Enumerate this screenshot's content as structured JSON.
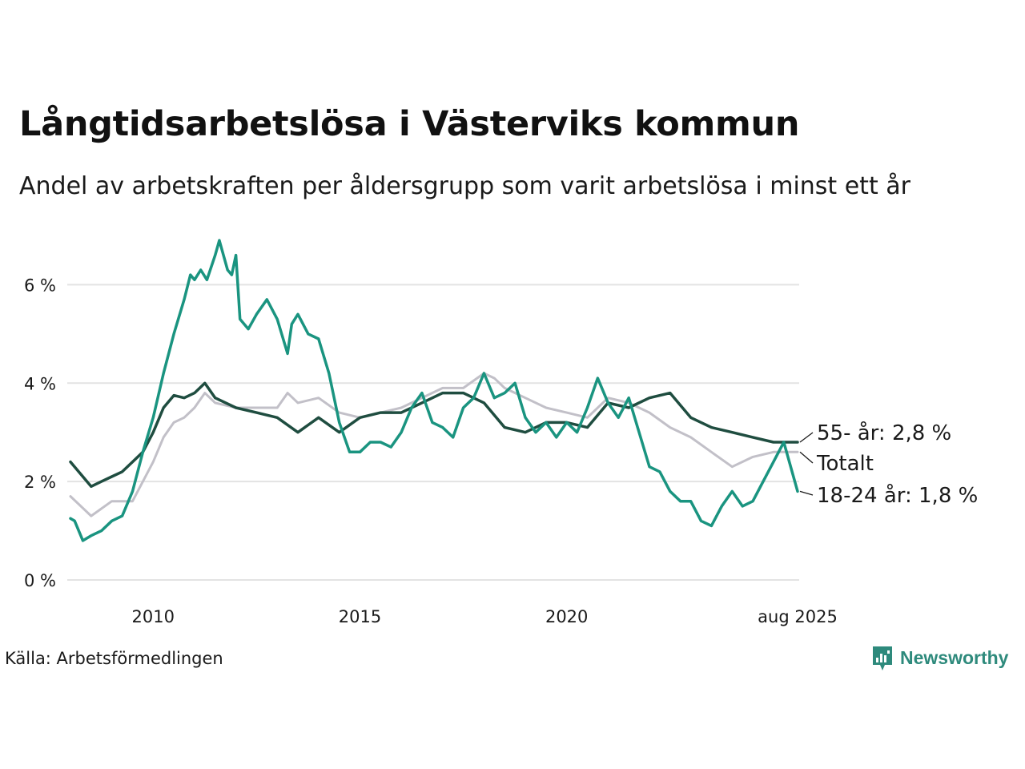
{
  "title": "Långtidsarbetslösa i Västerviks kommun",
  "subtitle": "Andel av arbetskraften per åldersgrupp som varit arbetslösa i minst ett år",
  "source": "Källa: Arbetsförmedlingen",
  "brand": "Newsworthy",
  "colors": {
    "youth": "#1a9480",
    "older": "#1f4d40",
    "total": "#c2c0c8",
    "grid": "#e3e3e3",
    "brand": "#2e8a7c"
  },
  "chart_data": {
    "type": "line",
    "ylim": [
      0,
      7
    ],
    "xlim": [
      2008.0,
      2025.583
    ],
    "yticks": [
      0,
      2,
      4,
      6
    ],
    "ytick_labels": [
      "0 %",
      "2 %",
      "4 %",
      "6 %"
    ],
    "xticks": [
      2010,
      2015,
      2020,
      2025.583
    ],
    "xtick_labels": [
      "2010",
      "2015",
      "2020",
      "aug 2025"
    ],
    "series": [
      {
        "key": "total",
        "label": "Totalt",
        "x": [
          2008.0,
          2008.5,
          2009.0,
          2009.5,
          2010.0,
          2010.25,
          2010.5,
          2010.75,
          2011.0,
          2011.25,
          2011.5,
          2012.0,
          2012.5,
          2013.0,
          2013.25,
          2013.5,
          2014.0,
          2014.5,
          2015.0,
          2015.5,
          2016.0,
          2016.5,
          2017.0,
          2017.5,
          2018.0,
          2018.25,
          2018.5,
          2019.0,
          2019.5,
          2020.0,
          2020.5,
          2021.0,
          2021.5,
          2022.0,
          2022.5,
          2023.0,
          2023.5,
          2024.0,
          2024.5,
          2025.0,
          2025.583
        ],
        "y": [
          1.7,
          1.3,
          1.6,
          1.6,
          2.4,
          2.9,
          3.2,
          3.3,
          3.5,
          3.8,
          3.6,
          3.5,
          3.5,
          3.5,
          3.8,
          3.6,
          3.7,
          3.4,
          3.3,
          3.4,
          3.5,
          3.7,
          3.9,
          3.9,
          4.2,
          4.1,
          3.9,
          3.7,
          3.5,
          3.4,
          3.3,
          3.7,
          3.6,
          3.4,
          3.1,
          2.9,
          2.6,
          2.3,
          2.5,
          2.6,
          2.6
        ]
      },
      {
        "key": "older",
        "label": "55- år",
        "value_label": "2,8 %",
        "x": [
          2008.0,
          2008.2,
          2008.5,
          2008.75,
          2009.0,
          2009.25,
          2009.5,
          2009.75,
          2010.0,
          2010.25,
          2010.5,
          2010.75,
          2011.0,
          2011.25,
          2011.5,
          2012.0,
          2012.5,
          2013.0,
          2013.5,
          2014.0,
          2014.5,
          2015.0,
          2015.5,
          2016.0,
          2016.5,
          2017.0,
          2017.5,
          2018.0,
          2018.5,
          2019.0,
          2019.5,
          2020.0,
          2020.5,
          2021.0,
          2021.5,
          2022.0,
          2022.5,
          2023.0,
          2023.5,
          2024.0,
          2024.5,
          2025.0,
          2025.583
        ],
        "y": [
          2.4,
          2.2,
          1.9,
          2.0,
          2.1,
          2.2,
          2.4,
          2.6,
          3.0,
          3.5,
          3.75,
          3.7,
          3.8,
          4.0,
          3.7,
          3.5,
          3.4,
          3.3,
          3.0,
          3.3,
          3.0,
          3.3,
          3.4,
          3.4,
          3.6,
          3.8,
          3.8,
          3.6,
          3.1,
          3.0,
          3.2,
          3.2,
          3.1,
          3.6,
          3.5,
          3.7,
          3.8,
          3.3,
          3.1,
          3.0,
          2.9,
          2.8,
          2.8
        ]
      },
      {
        "key": "youth",
        "label": "18-24 år",
        "value_label": "1,8 %",
        "x": [
          2008.0,
          2008.1,
          2008.3,
          2008.5,
          2008.75,
          2009.0,
          2009.25,
          2009.5,
          2009.75,
          2010.0,
          2010.25,
          2010.5,
          2010.75,
          2010.9,
          2011.0,
          2011.15,
          2011.3,
          2011.5,
          2011.6,
          2011.8,
          2011.9,
          2012.0,
          2012.1,
          2012.3,
          2012.5,
          2012.75,
          2013.0,
          2013.25,
          2013.35,
          2013.5,
          2013.75,
          2014.0,
          2014.25,
          2014.5,
          2014.75,
          2015.0,
          2015.25,
          2015.5,
          2015.75,
          2016.0,
          2016.25,
          2016.5,
          2016.75,
          2017.0,
          2017.25,
          2017.5,
          2017.75,
          2018.0,
          2018.25,
          2018.5,
          2018.75,
          2019.0,
          2019.25,
          2019.5,
          2019.75,
          2020.0,
          2020.25,
          2020.5,
          2020.75,
          2021.0,
          2021.25,
          2021.5,
          2021.75,
          2022.0,
          2022.25,
          2022.5,
          2022.75,
          2023.0,
          2023.25,
          2023.5,
          2023.75,
          2024.0,
          2024.25,
          2024.5,
          2024.75,
          2025.0,
          2025.25,
          2025.583
        ],
        "y": [
          1.25,
          1.2,
          0.8,
          0.9,
          1.0,
          1.2,
          1.3,
          1.8,
          2.6,
          3.3,
          4.2,
          5.0,
          5.7,
          6.2,
          6.1,
          6.3,
          6.1,
          6.6,
          6.9,
          6.3,
          6.2,
          6.6,
          5.3,
          5.1,
          5.4,
          5.7,
          5.3,
          4.6,
          5.2,
          5.4,
          5.0,
          4.9,
          4.2,
          3.2,
          2.6,
          2.6,
          2.8,
          2.8,
          2.7,
          3.0,
          3.5,
          3.8,
          3.2,
          3.1,
          2.9,
          3.5,
          3.7,
          4.2,
          3.7,
          3.8,
          4.0,
          3.3,
          3.0,
          3.2,
          2.9,
          3.2,
          3.0,
          3.5,
          4.1,
          3.6,
          3.3,
          3.7,
          3.0,
          2.3,
          2.2,
          1.8,
          1.6,
          1.6,
          1.2,
          1.1,
          1.5,
          1.8,
          1.5,
          1.6,
          2.0,
          2.4,
          2.8,
          1.8
        ]
      }
    ]
  }
}
